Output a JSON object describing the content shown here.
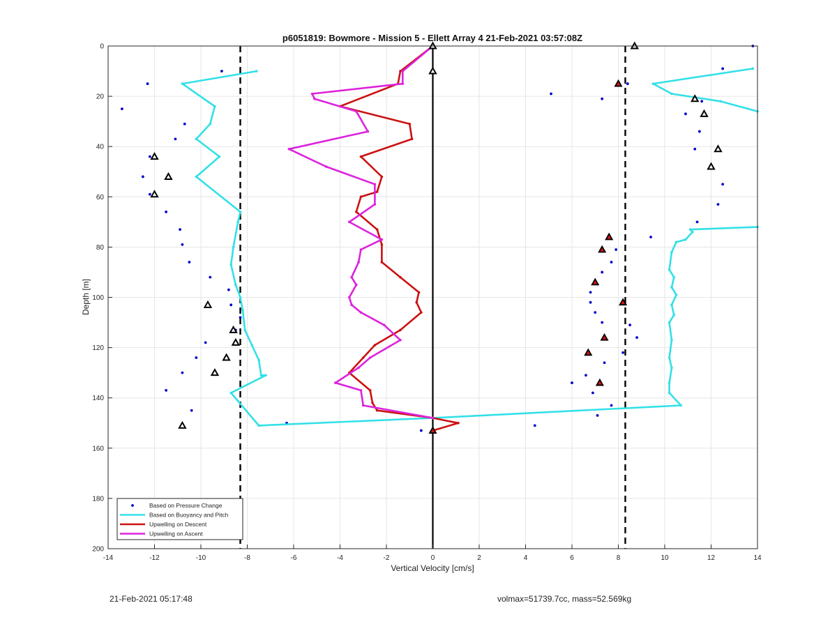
{
  "chart_data": {
    "type": "line",
    "title": "p6051819: Bowmore - Mission 5 - Ellett Array 4 21-Feb-2021 03:57:08Z",
    "xlabel": "Vertical Velocity [cm/s]",
    "ylabel": "Depth [m]",
    "xlim": [
      -14,
      14
    ],
    "ylim": [
      0,
      200
    ],
    "y_reversed": true,
    "grid": true,
    "legend_position": "bottom-left",
    "xticks": [
      -14,
      -12,
      -10,
      -8,
      -6,
      -4,
      -2,
      0,
      2,
      4,
      6,
      8,
      10,
      12,
      14
    ],
    "yticks": [
      0,
      20,
      40,
      60,
      80,
      100,
      120,
      140,
      160,
      180,
      200
    ],
    "legend": [
      "Based on Pressure Change",
      "Based on Buoyancy and Pitch",
      "Upwelling on Descent",
      "Upwelling on Ascent"
    ],
    "colors": {
      "pressure": "#0000cc",
      "buoyancy": "#33e0e8",
      "descent": "#cc1111",
      "ascent": "#dd22dd",
      "reference": "#000000"
    },
    "reference_lines": [
      {
        "x": -8.3,
        "style": "dashed"
      },
      {
        "x": 8.3,
        "style": "dashed"
      },
      {
        "x": 0,
        "style": "solid"
      }
    ],
    "series": [
      {
        "name": "Based on Pressure Change",
        "style": "points",
        "x": [
          -9.1,
          -12.3,
          -13.4,
          -10.7,
          -11.1,
          -12.2,
          -12.5,
          -12.2,
          -11.5,
          -10.9,
          -10.8,
          -10.5,
          -9.6,
          -8.8,
          -8.7,
          -8.3,
          -8.5,
          -9.8,
          -10.2,
          -10.8,
          -11.5,
          -10.4,
          -6.3,
          -0.5,
          13.8,
          12.5,
          8.4,
          5.1,
          7.3,
          11.6,
          10.9,
          11.5,
          11.3,
          12.5,
          12.3,
          11.4,
          9.4,
          7.9,
          7.7,
          7.3,
          6.8,
          6.8,
          7.0,
          7.3,
          8.5,
          8.8,
          8.2,
          7.4,
          6.6,
          6.0,
          6.9,
          7.7,
          7.1,
          4.4
        ],
        "y": [
          10,
          15,
          25,
          31,
          37,
          44,
          52,
          59,
          66,
          73,
          79,
          86,
          92,
          97,
          103,
          108,
          113,
          118,
          124,
          130,
          137,
          145,
          150,
          153,
          0,
          9,
          15,
          19,
          21,
          22,
          27,
          34,
          41,
          55,
          63,
          70,
          76,
          81,
          86,
          90,
          98,
          102,
          106,
          110,
          111,
          116,
          122,
          126,
          131,
          134,
          138,
          143,
          147,
          151
        ]
      },
      {
        "name": "Based on Buoyancy and Pitch",
        "style": "line",
        "segments": [
          {
            "x": [
              -7.6,
              -10.8,
              -9.4,
              -9.6,
              -10.2,
              -9.2,
              -10.2,
              -8.3,
              -8.4,
              -8.6,
              -8.7,
              -8.5,
              -8.3,
              -8.2,
              -8.1,
              -7.8,
              -7.5,
              -7.4,
              -7.2,
              -8.7,
              -7.5,
              0.0,
              10.7,
              10.2,
              10.2,
              10.3,
              10.2,
              10.3,
              10.2,
              10.4,
              10.3,
              10.5,
              10.3,
              10.4,
              10.2,
              10.3,
              10.5,
              10.9,
              11.2,
              11.1,
              14.0
            ],
            "y": [
              10,
              15,
              24,
              31,
              37,
              44,
              52,
              66,
              70,
              80,
              87,
              95,
              100,
              105,
              113,
              119,
              125,
              131,
              131,
              138,
              151,
              148,
              143,
              138,
              134,
              128,
              124,
              117,
              110,
              107,
              103,
              99,
              96,
              92,
              89,
              82,
              78,
              77,
              74,
              73,
              72
            ]
          },
          {
            "x": [
              14.0,
              12.4,
              10.3,
              9.5,
              13.8
            ],
            "y": [
              26,
              22,
              19,
              15,
              9
            ]
          }
        ]
      },
      {
        "name": "Upwelling on Descent",
        "style": "line",
        "x": [
          0,
          -1.4,
          -1.5,
          -4.0,
          -1.0,
          -0.9,
          -3.1,
          -2.2,
          -2.4,
          -3.1,
          -3.3,
          -2.4,
          -2.2,
          -2.2,
          -1.4,
          -0.6,
          -0.7,
          -0.5,
          -1.4,
          -2.5,
          -3.0,
          -3.6,
          -2.7,
          -2.6,
          -2.4,
          0.0,
          1.1,
          0.0
        ],
        "y": [
          0,
          10,
          15,
          24,
          31,
          37,
          44,
          52,
          58,
          60,
          66,
          73,
          79,
          86,
          92,
          98,
          102,
          106,
          113,
          119,
          124,
          130,
          137,
          142,
          145,
          148,
          150,
          153
        ]
      },
      {
        "name": "Upwelling on Ascent",
        "style": "line",
        "x": [
          0,
          -1.3,
          -1.3,
          -5.2,
          -5.1,
          -3.3,
          -2.8,
          -6.2,
          -4.6,
          -2.5,
          -2.5,
          -3.6,
          -2.2,
          -3.1,
          -3.2,
          -3.5,
          -3.3,
          -3.6,
          -3.5,
          -3.1,
          -2.1,
          -1.4,
          -2.7,
          -3.2,
          -4.2,
          -3.1,
          -3.0,
          0.0
        ],
        "y": [
          0,
          10,
          15,
          19,
          21,
          26,
          34,
          41,
          48,
          55,
          63,
          70,
          77,
          81,
          86,
          92,
          95,
          100,
          103,
          106,
          111,
          117,
          124,
          128,
          134,
          137,
          143,
          148
        ]
      }
    ],
    "markers_black": {
      "x": [
        -12.0,
        -11.4,
        -12.0,
        -9.7,
        -8.6,
        -8.5,
        -8.9,
        -9.4,
        -10.8,
        0.0,
        0.0,
        8.7,
        11.3,
        11.7,
        12.3,
        12.0
      ],
      "y": [
        44,
        52,
        59,
        103,
        113,
        118,
        124,
        130,
        151,
        0,
        10,
        0,
        21,
        27,
        41,
        48
      ]
    },
    "markers_red": {
      "x": [
        8.0,
        7.6,
        7.3,
        7.0,
        8.2,
        7.4,
        6.7,
        7.2,
        0.0
      ],
      "y": [
        15,
        76,
        81,
        94,
        102,
        116,
        122,
        134,
        153
      ]
    }
  },
  "footer": {
    "left": "21-Feb-2021 05:17:48",
    "right": "volmax=51739.7cc, mass=52.569kg"
  }
}
